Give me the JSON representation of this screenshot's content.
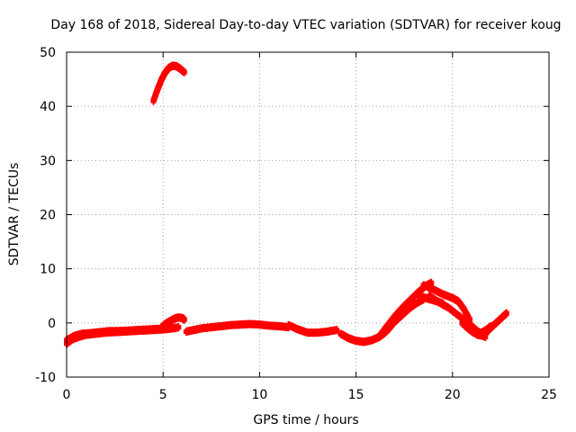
{
  "chart_data": {
    "type": "scatter",
    "title": "Day 168 of 2018, Sidereal Day-to-day VTEC variation (SDTVAR) for receiver koug",
    "xlabel": "GPS time / hours",
    "ylabel": "SDTVAR / TECUs",
    "xlim": [
      0,
      25
    ],
    "ylim": [
      -10,
      50
    ],
    "x_ticks": [
      "0",
      "5",
      "10",
      "15",
      "20",
      "25"
    ],
    "y_ticks": [
      "-10",
      "0",
      "10",
      "20",
      "30",
      "40",
      "50"
    ],
    "grid": true,
    "marker": "+",
    "colors": {
      "series": "#ff0000"
    },
    "series": [
      {
        "name": "arc-main-a",
        "x": [
          0.0,
          0.3,
          0.6,
          1.0,
          1.5,
          2.0,
          2.5,
          3.0,
          3.5,
          4.0,
          4.5,
          5.0,
          5.5,
          5.8
        ],
        "y": [
          -3.8,
          -3.0,
          -2.6,
          -2.2,
          -2.0,
          -1.8,
          -1.7,
          -1.6,
          -1.5,
          -1.4,
          -1.3,
          -1.2,
          -1.0,
          -0.8
        ]
      },
      {
        "name": "arc-main-b",
        "x": [
          0.0,
          0.4,
          0.8,
          1.2,
          1.7,
          2.2,
          2.7,
          3.2,
          3.7,
          4.2,
          4.7,
          5.2
        ],
        "y": [
          -3.2,
          -2.4,
          -2.0,
          -1.9,
          -1.7,
          -1.5,
          -1.5,
          -1.4,
          -1.3,
          -1.2,
          -1.1,
          -1.0
        ]
      },
      {
        "name": "arc-bump-5h",
        "x": [
          5.0,
          5.2,
          5.4,
          5.6,
          5.8,
          6.0,
          6.1
        ],
        "y": [
          -0.5,
          0.0,
          0.4,
          0.8,
          1.0,
          0.9,
          0.6
        ]
      },
      {
        "name": "arc-high",
        "x": [
          4.5,
          4.7,
          4.9,
          5.1,
          5.3,
          5.5,
          5.7,
          5.9,
          6.1
        ],
        "y": [
          41.0,
          43.0,
          44.8,
          46.2,
          47.1,
          47.5,
          47.4,
          46.9,
          46.3
        ]
      },
      {
        "name": "arc-mid-a",
        "x": [
          6.2,
          6.6,
          7.0,
          7.5,
          8.0,
          8.5,
          9.0,
          9.5,
          10.0,
          10.5,
          11.0,
          11.5
        ],
        "y": [
          -1.6,
          -1.3,
          -1.0,
          -0.8,
          -0.6,
          -0.4,
          -0.3,
          -0.2,
          -0.3,
          -0.5,
          -0.6,
          -0.8
        ]
      },
      {
        "name": "arc-mid-b",
        "x": [
          11.5,
          12.0,
          12.5,
          13.0,
          13.5,
          14.0
        ],
        "y": [
          -0.4,
          -1.2,
          -1.8,
          -1.8,
          -1.6,
          -1.3
        ]
      },
      {
        "name": "arc-dip-15h",
        "x": [
          14.2,
          14.6,
          15.0,
          15.4,
          15.8,
          16.2,
          16.5
        ],
        "y": [
          -2.0,
          -2.8,
          -3.3,
          -3.5,
          -3.2,
          -2.6,
          -1.8
        ]
      },
      {
        "name": "arc-rise-a",
        "x": [
          16.2,
          16.6,
          17.0,
          17.4,
          17.8,
          18.2,
          18.6,
          18.9
        ],
        "y": [
          -2.5,
          -0.6,
          1.2,
          2.8,
          4.2,
          5.6,
          6.8,
          7.4
        ]
      },
      {
        "name": "arc-rise-b",
        "x": [
          16.6,
          17.0,
          17.4,
          17.8,
          18.2,
          18.5
        ],
        "y": [
          -1.5,
          0.2,
          1.5,
          2.8,
          3.8,
          4.4
        ]
      },
      {
        "name": "arc-peak-fall",
        "x": [
          18.5,
          19.0,
          19.5,
          20.0,
          20.3,
          20.6,
          20.9
        ],
        "y": [
          7.0,
          6.2,
          5.3,
          4.6,
          4.0,
          2.5,
          0.5
        ]
      },
      {
        "name": "arc-drop",
        "x": [
          18.8,
          19.3,
          19.8,
          20.3,
          20.8,
          21.3,
          21.7
        ],
        "y": [
          5.0,
          3.8,
          2.8,
          1.4,
          0.0,
          -1.5,
          -2.6
        ]
      },
      {
        "name": "arc-short",
        "x": [
          18.3,
          18.6,
          18.9,
          19.2,
          19.5
        ],
        "y": [
          5.0,
          4.6,
          4.3,
          4.0,
          3.6
        ]
      },
      {
        "name": "arc-tail",
        "x": [
          21.0,
          21.3,
          21.6,
          21.9,
          22.2,
          22.5,
          22.8
        ],
        "y": [
          -1.5,
          -2.2,
          -2.4,
          -1.2,
          -0.2,
          0.8,
          1.8
        ]
      },
      {
        "name": "arc-tail-b",
        "x": [
          20.5,
          20.8,
          21.1,
          21.4,
          21.7,
          22.0
        ],
        "y": [
          0.0,
          -1.0,
          -1.8,
          -2.0,
          -1.4,
          -0.6
        ]
      }
    ]
  }
}
